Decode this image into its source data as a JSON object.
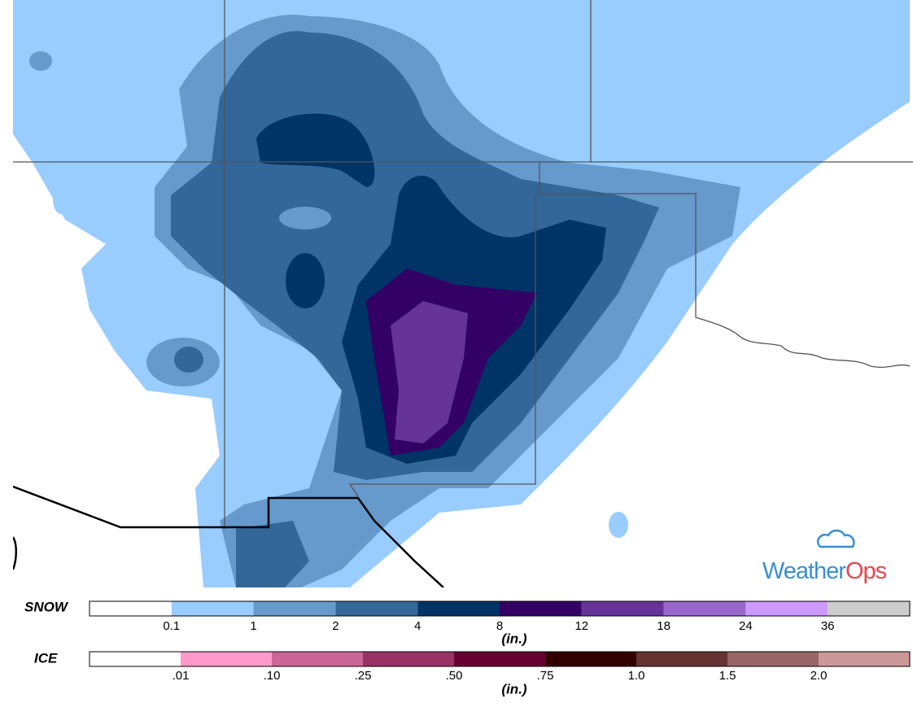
{
  "legend": {
    "snow": {
      "label": "SNOW",
      "unit": "(in.)",
      "ticks": [
        "0.1",
        "1",
        "2",
        "4",
        "8",
        "12",
        "18",
        "24",
        "36"
      ],
      "colors": [
        "#ffffff",
        "#99ccff",
        "#6699cc",
        "#336699",
        "#003366",
        "#330066",
        "#663399",
        "#9966cc",
        "#cc99ff",
        "#cccccc"
      ]
    },
    "ice": {
      "label": "ICE",
      "unit": "(in.)",
      "ticks": [
        ".01",
        ".10",
        ".25",
        ".50",
        ".75",
        "1.0",
        "1.5",
        "2.0"
      ],
      "colors": [
        "#ffffff",
        "#ff99cc",
        "#cc6699",
        "#993366",
        "#660033",
        "#330000",
        "#663333",
        "#996666",
        "#cc9999"
      ]
    }
  },
  "logo": {
    "first": "Weather",
    "second": "Ops"
  }
}
